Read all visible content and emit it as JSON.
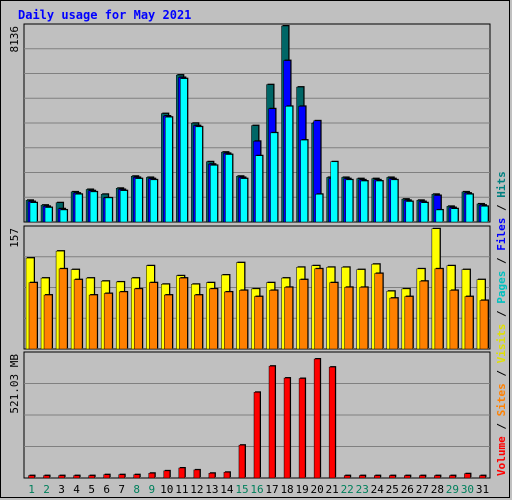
{
  "title": "Daily usage for May 2021",
  "chart_data": {
    "type": "bar",
    "panels": [
      {
        "id": "top",
        "max_label": "8136",
        "ylim": [
          0,
          8136
        ],
        "series": [
          {
            "name": "Hits",
            "color": "#006666",
            "values": [
              900,
              700,
              800,
              1250,
              1350,
              1150,
              1400,
              1900,
              1850,
              4500,
              6100,
              4100,
              2500,
              2900,
              1900,
              4000,
              5700,
              8136,
              5600,
              4100,
              1850,
              1850,
              1800,
              1800,
              1850,
              950,
              900,
              1150,
              650,
              1250,
              750
            ]
          },
          {
            "name": "Files",
            "color": "#0000ff",
            "values": [
              850,
              650,
              550,
              1200,
              1300,
              1000,
              1350,
              1850,
              1800,
              4400,
              6000,
              4000,
              2400,
              2850,
              1850,
              3350,
              4700,
              6700,
              4800,
              4200,
              1800,
              1800,
              1750,
              1750,
              1800,
              900,
              850,
              1100,
              600,
              1200,
              700
            ]
          },
          {
            "name": "Pages",
            "color": "#00ffff",
            "values": [
              800,
              600,
              500,
              1150,
              1250,
              1000,
              1300,
              1800,
              1750,
              4350,
              5950,
              3950,
              2350,
              2800,
              1800,
              2750,
              3700,
              4800,
              3400,
              1150,
              2500,
              1750,
              1700,
              1700,
              1750,
              850,
              800,
              500,
              550,
              1150,
              650
            ]
          }
        ]
      },
      {
        "id": "middle",
        "max_label": "157",
        "ylim": [
          0,
          157
        ],
        "series": [
          {
            "name": "Visits",
            "color": "#ffff00",
            "values": [
              118,
              92,
              127,
              103,
              92,
              88,
              87,
              92,
              108,
              84,
              95,
              84,
              86,
              96,
              112,
              78,
              86,
              92,
              106,
              108,
              106,
              106,
              103,
              110,
              75,
              78,
              104,
              156,
              108,
              103,
              90
            ]
          },
          {
            "name": "Sites",
            "color": "#ff8000",
            "values": [
              86,
              70,
              104,
              90,
              70,
              72,
              74,
              78,
              86,
              70,
              92,
              70,
              78,
              74,
              76,
              68,
              76,
              80,
              90,
              104,
              86,
              80,
              80,
              98,
              66,
              68,
              88,
              104,
              76,
              68,
              63
            ]
          }
        ]
      },
      {
        "id": "bottom",
        "max_label": "521.03 MB",
        "ylim": [
          0,
          521.03
        ],
        "series": [
          {
            "name": "Volume",
            "color": "#ff0000",
            "values": [
              10,
              10,
              10,
              10,
              10,
              14,
              14,
              14,
              20,
              30,
              42,
              34,
              20,
              24,
              138,
              360,
              470,
              420,
              418,
              500,
              466,
              10,
              10,
              10,
              10,
              10,
              10,
              10,
              10,
              18,
              10
            ]
          }
        ]
      }
    ],
    "x_labels": [
      "1",
      "2",
      "3",
      "4",
      "5",
      "6",
      "7",
      "8",
      "9",
      "10",
      "11",
      "12",
      "13",
      "14",
      "15",
      "16",
      "17",
      "18",
      "19",
      "20",
      "21",
      "22",
      "23",
      "24",
      "25",
      "26",
      "27",
      "28",
      "29",
      "30",
      "31"
    ],
    "weekend_days": [
      1,
      2,
      8,
      9,
      15,
      16,
      22,
      23,
      29,
      30
    ],
    "x_label_color_weekday": "#000000",
    "x_label_color_weekend": "#00805c",
    "right_legend": {
      "panel_top": [
        "Hits",
        "Files",
        "Pages",
        "Visits",
        "Sites",
        "Volume"
      ],
      "separator": " / "
    }
  }
}
